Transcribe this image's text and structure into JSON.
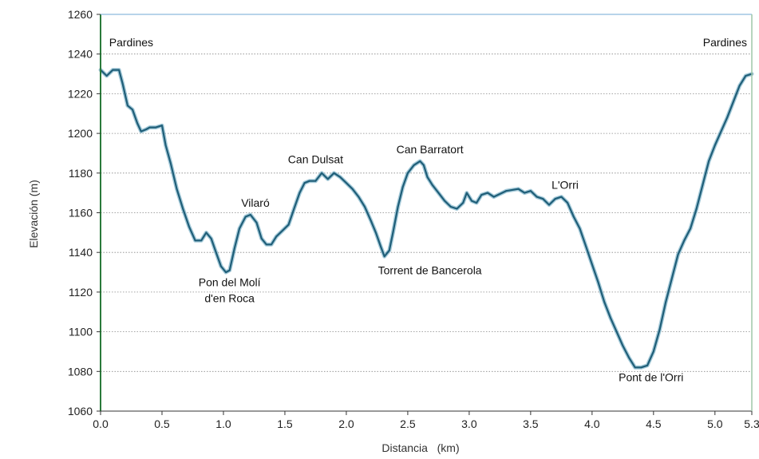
{
  "chart_data": {
    "type": "line",
    "xlabel": "Distancia   (km)",
    "ylabel": "Elevación (m)",
    "xlim": [
      0.0,
      5.3
    ],
    "ylim": [
      1060,
      1260
    ],
    "grid": "horizontal-dotted",
    "x_ticks": [
      {
        "value": 0.0,
        "label": "0.0"
      },
      {
        "value": 0.5,
        "label": "0.5"
      },
      {
        "value": 1.0,
        "label": "1.0"
      },
      {
        "value": 1.5,
        "label": "1.5"
      },
      {
        "value": 2.0,
        "label": "2.0"
      },
      {
        "value": 2.5,
        "label": "2.5"
      },
      {
        "value": 3.0,
        "label": "3.0"
      },
      {
        "value": 3.5,
        "label": "3.5"
      },
      {
        "value": 4.0,
        "label": "4.0"
      },
      {
        "value": 4.5,
        "label": "4.5"
      },
      {
        "value": 5.0,
        "label": "5.0"
      },
      {
        "value": 5.3,
        "label": "5.3"
      }
    ],
    "y_ticks": [
      {
        "value": 1060,
        "label": "1060"
      },
      {
        "value": 1080,
        "label": "1080"
      },
      {
        "value": 1100,
        "label": "1100"
      },
      {
        "value": 1120,
        "label": "1120"
      },
      {
        "value": 1140,
        "label": "1140"
      },
      {
        "value": 1160,
        "label": "1160"
      },
      {
        "value": 1180,
        "label": "1180"
      },
      {
        "value": 1200,
        "label": "1200"
      },
      {
        "value": 1220,
        "label": "1220"
      },
      {
        "value": 1240,
        "label": "1240"
      },
      {
        "value": 1260,
        "label": "1260"
      }
    ],
    "series": [
      {
        "color": "#1f5e78",
        "x": [
          0.0,
          0.05,
          0.1,
          0.15,
          0.18,
          0.22,
          0.26,
          0.3,
          0.33,
          0.37,
          0.4,
          0.45,
          0.5,
          0.53,
          0.57,
          0.62,
          0.67,
          0.72,
          0.77,
          0.82,
          0.86,
          0.9,
          0.94,
          0.98,
          1.02,
          1.05,
          1.09,
          1.13,
          1.18,
          1.22,
          1.27,
          1.31,
          1.35,
          1.39,
          1.43,
          1.48,
          1.53,
          1.58,
          1.62,
          1.66,
          1.7,
          1.75,
          1.8,
          1.85,
          1.9,
          1.95,
          2.0,
          2.05,
          2.1,
          2.15,
          2.2,
          2.24,
          2.28,
          2.31,
          2.35,
          2.38,
          2.42,
          2.46,
          2.5,
          2.55,
          2.6,
          2.63,
          2.66,
          2.7,
          2.75,
          2.8,
          2.85,
          2.9,
          2.95,
          2.98,
          3.02,
          3.06,
          3.1,
          3.15,
          3.2,
          3.3,
          3.4,
          3.45,
          3.5,
          3.55,
          3.6,
          3.65,
          3.7,
          3.75,
          3.8,
          3.85,
          3.9,
          3.95,
          4.0,
          4.05,
          4.1,
          4.15,
          4.2,
          4.25,
          4.3,
          4.35,
          4.4,
          4.45,
          4.5,
          4.55,
          4.6,
          4.65,
          4.7,
          4.75,
          4.8,
          4.85,
          4.9,
          4.95,
          5.0,
          5.05,
          5.1,
          5.15,
          5.2,
          5.25,
          5.3
        ],
        "y": [
          1232,
          1229,
          1232,
          1232,
          1225,
          1214,
          1212,
          1205,
          1201,
          1202,
          1203,
          1203,
          1204,
          1194,
          1185,
          1172,
          1162,
          1153,
          1146,
          1146,
          1150,
          1147,
          1140,
          1133,
          1130,
          1131,
          1142,
          1152,
          1158,
          1159,
          1155,
          1147,
          1144,
          1144,
          1148,
          1151,
          1154,
          1163,
          1170,
          1175,
          1176,
          1176,
          1180,
          1177,
          1180,
          1178,
          1175,
          1172,
          1168,
          1163,
          1156,
          1150,
          1143,
          1138,
          1141,
          1150,
          1163,
          1173,
          1180,
          1184,
          1186,
          1184,
          1178,
          1174,
          1170,
          1166,
          1163,
          1162,
          1165,
          1170,
          1166,
          1165,
          1169,
          1170,
          1168,
          1171,
          1172,
          1170,
          1171,
          1168,
          1167,
          1164,
          1167,
          1168,
          1165,
          1158,
          1152,
          1143,
          1134,
          1125,
          1115,
          1107,
          1100,
          1093,
          1087,
          1082,
          1082,
          1083,
          1090,
          1101,
          1115,
          1127,
          1139,
          1146,
          1152,
          1162,
          1174,
          1186,
          1194,
          1201,
          1208,
          1216,
          1224,
          1229,
          1230
        ]
      }
    ],
    "annotations": [
      {
        "text": "Pardines",
        "x": 0.07,
        "y": 1244
      },
      {
        "text": "Pon del Molí",
        "x": 1.05,
        "y": 1123
      },
      {
        "text": "d'en Roca",
        "x": 1.05,
        "y": 1115
      },
      {
        "text": "Vilaró",
        "x": 1.26,
        "y": 1163
      },
      {
        "text": "Can Dulsat",
        "x": 1.75,
        "y": 1185
      },
      {
        "text": "Torrent de Bancerola",
        "x": 2.68,
        "y": 1129
      },
      {
        "text": "Can Barratort",
        "x": 2.68,
        "y": 1190
      },
      {
        "text": "L'Orri",
        "x": 3.78,
        "y": 1172
      },
      {
        "text": "Pont de l'Orri",
        "x": 4.48,
        "y": 1075
      },
      {
        "text": "Pardines",
        "x": 5.12,
        "y": 1244
      }
    ]
  }
}
